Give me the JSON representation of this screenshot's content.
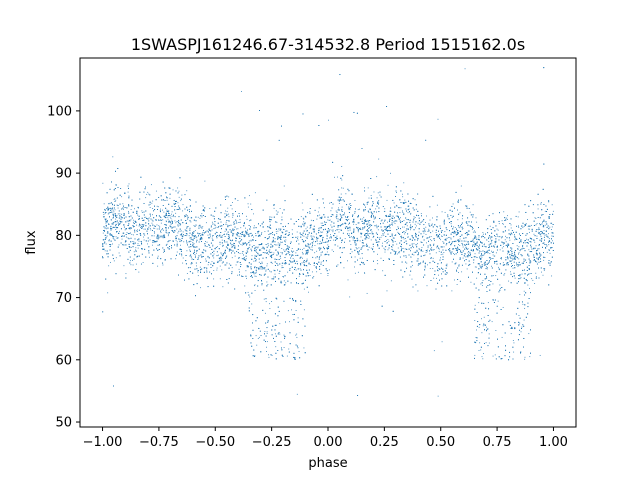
{
  "chart_data": {
    "type": "scatter",
    "title": "1SWASPJ161246.67-314532.8 Period 1515162.0s",
    "xlabel": "phase",
    "ylabel": "flux",
    "xlim": [
      -1.1,
      1.1
    ],
    "ylim": [
      49.2,
      108.5
    ],
    "x_ticks": [
      -1.0,
      -0.75,
      -0.5,
      -0.25,
      0.0,
      0.25,
      0.5,
      0.75,
      1.0
    ],
    "x_tick_labels": [
      "−1.00",
      "−0.75",
      "−0.50",
      "−0.25",
      "0.00",
      "0.25",
      "0.50",
      "0.75",
      "1.00"
    ],
    "y_ticks": [
      50,
      60,
      70,
      80,
      90,
      100
    ],
    "y_tick_labels": [
      "50",
      "60",
      "70",
      "80",
      "90",
      "100"
    ],
    "grid": false,
    "legend": "none",
    "marker_color": "#1f77b4",
    "profile": [
      {
        "phase": -1.0,
        "flux": 80
      },
      {
        "phase": -0.95,
        "flux": 83
      },
      {
        "phase": -0.9,
        "flux": 81
      },
      {
        "phase": -0.85,
        "flux": 80
      },
      {
        "phase": -0.8,
        "flux": 82
      },
      {
        "phase": -0.75,
        "flux": 81
      },
      {
        "phase": -0.7,
        "flux": 82
      },
      {
        "phase": -0.65,
        "flux": 81
      },
      {
        "phase": -0.6,
        "flux": 79
      },
      {
        "phase": -0.55,
        "flux": 79
      },
      {
        "phase": -0.5,
        "flux": 78
      },
      {
        "phase": -0.45,
        "flux": 79
      },
      {
        "phase": -0.4,
        "flux": 80
      },
      {
        "phase": -0.35,
        "flux": 78
      },
      {
        "phase": -0.3,
        "flux": 76
      },
      {
        "phase": -0.25,
        "flux": 78
      },
      {
        "phase": -0.2,
        "flux": 78
      },
      {
        "phase": -0.15,
        "flux": 76
      },
      {
        "phase": -0.1,
        "flux": 78
      },
      {
        "phase": -0.05,
        "flux": 79
      },
      {
        "phase": 0.0,
        "flux": 80
      },
      {
        "phase": 0.05,
        "flux": 83
      },
      {
        "phase": 0.1,
        "flux": 81
      },
      {
        "phase": 0.15,
        "flux": 80
      },
      {
        "phase": 0.2,
        "flux": 82
      },
      {
        "phase": 0.25,
        "flux": 81
      },
      {
        "phase": 0.3,
        "flux": 82
      },
      {
        "phase": 0.35,
        "flux": 81
      },
      {
        "phase": 0.4,
        "flux": 79
      },
      {
        "phase": 0.45,
        "flux": 79
      },
      {
        "phase": 0.5,
        "flux": 78
      },
      {
        "phase": 0.55,
        "flux": 79
      },
      {
        "phase": 0.6,
        "flux": 80
      },
      {
        "phase": 0.65,
        "flux": 78
      },
      {
        "phase": 0.7,
        "flux": 76
      },
      {
        "phase": 0.75,
        "flux": 78
      },
      {
        "phase": 0.8,
        "flux": 78
      },
      {
        "phase": 0.85,
        "flux": 76
      },
      {
        "phase": 0.9,
        "flux": 78
      },
      {
        "phase": 0.95,
        "flux": 79
      },
      {
        "phase": 1.0,
        "flux": 80
      }
    ],
    "scatter_width": 7,
    "dip_regions": [
      {
        "phase_min": -0.35,
        "phase_max": -0.1,
        "flux_min": 60,
        "flux_max": 70
      },
      {
        "phase_min": 0.65,
        "phase_max": 0.9,
        "flux_min": 60,
        "flux_max": 70
      }
    ],
    "outlier_range": [
      52,
      107
    ],
    "n_points": 9000
  }
}
